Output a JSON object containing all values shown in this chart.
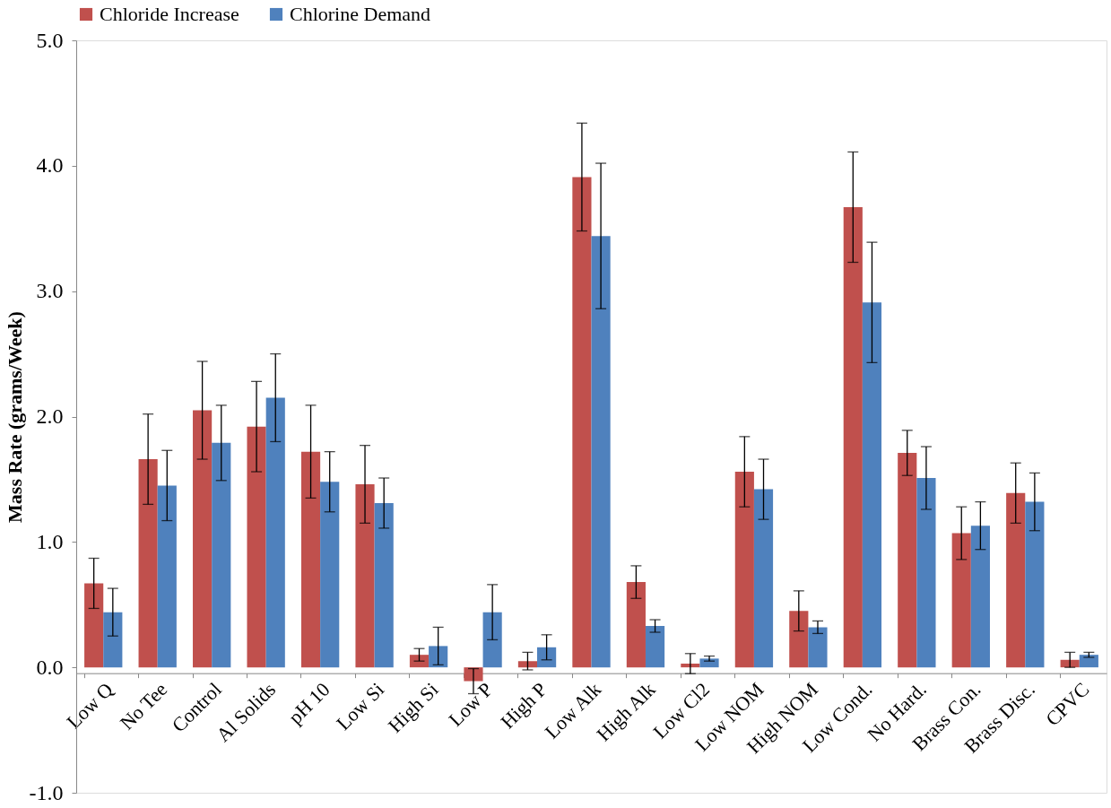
{
  "chart_data": {
    "type": "bar",
    "ylabel": "Mass Rate (grams/Week)",
    "categories": [
      "Low Q",
      "No Tee",
      "Control",
      "Al Solids",
      "pH 10",
      "Low Si",
      "High Si",
      "Low P",
      "High P",
      "Low Alk",
      "High Alk",
      "Low Cl2",
      "Low NOM",
      "High NOM",
      "Low Cond.",
      "No Hard.",
      "Brass Con.",
      "Brass Disc.",
      "CPVC"
    ],
    "series": [
      {
        "name": "Chloride Increase",
        "color": "#c0504d",
        "values": [
          0.67,
          1.66,
          2.05,
          1.92,
          1.72,
          1.46,
          0.1,
          -0.11,
          0.05,
          3.91,
          0.68,
          0.03,
          1.56,
          0.45,
          3.67,
          1.71,
          1.07,
          1.39,
          0.06
        ],
        "errors": [
          0.2,
          0.36,
          0.39,
          0.36,
          0.37,
          0.31,
          0.05,
          0.1,
          0.07,
          0.43,
          0.13,
          0.08,
          0.28,
          0.16,
          0.44,
          0.18,
          0.21,
          0.24,
          0.06
        ]
      },
      {
        "name": "Chlorine Demand",
        "color": "#4f81bd",
        "values": [
          0.44,
          1.45,
          1.79,
          2.15,
          1.48,
          1.31,
          0.17,
          0.44,
          0.16,
          3.44,
          0.33,
          0.07,
          1.42,
          0.32,
          2.91,
          1.51,
          1.13,
          1.32,
          0.1
        ],
        "errors": [
          0.19,
          0.28,
          0.3,
          0.35,
          0.24,
          0.2,
          0.15,
          0.22,
          0.1,
          0.58,
          0.05,
          0.02,
          0.24,
          0.05,
          0.48,
          0.25,
          0.19,
          0.23,
          0.02
        ]
      }
    ],
    "ylim": [
      -1,
      5
    ],
    "yticks": [
      {
        "value": -1,
        "label": "-1.0"
      },
      {
        "value": 0,
        "label": "0.0"
      },
      {
        "value": 1,
        "label": "1.0"
      },
      {
        "value": 2,
        "label": "2.0"
      },
      {
        "value": 3,
        "label": "3.0"
      },
      {
        "value": 4,
        "label": "4.0"
      },
      {
        "value": 5,
        "label": "5.0"
      }
    ],
    "legend": "top",
    "grid": false
  }
}
